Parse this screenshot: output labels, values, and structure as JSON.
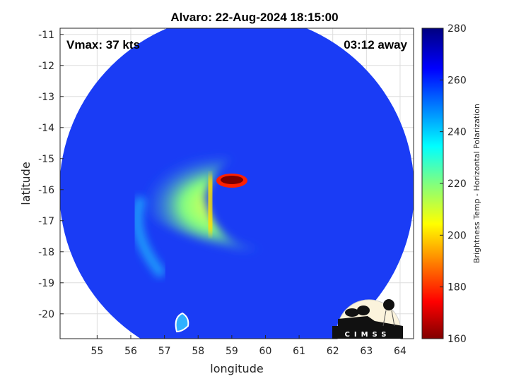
{
  "chart_data": {
    "type": "heatmap",
    "title": "Alvaro: 22-Aug-2024 18:15:00",
    "xlabel": "longitude",
    "ylabel": "latitude",
    "xlim": [
      53.9,
      64.4
    ],
    "ylim": [
      -20.8,
      -10.8
    ],
    "xticks": [
      55,
      56,
      57,
      58,
      59,
      60,
      61,
      62,
      63,
      64
    ],
    "yticks": [
      -11,
      -12,
      -13,
      -14,
      -15,
      -16,
      -17,
      -18,
      -19,
      -20
    ],
    "grid": true,
    "annotations": {
      "vmax": "Vmax: 37 kts",
      "time_offset": "03:12 away"
    },
    "colorbar": {
      "label": "Brightness Temp - Horizontal Polarization",
      "range": [
        160,
        280
      ],
      "ticks": [
        160,
        180,
        200,
        220,
        240,
        260,
        280
      ],
      "colormap": "jet"
    },
    "storm_center": {
      "lon": 59.1,
      "lat": -15.7,
      "min_value": 160
    }
  },
  "logo": {
    "text": "CIMSS"
  }
}
